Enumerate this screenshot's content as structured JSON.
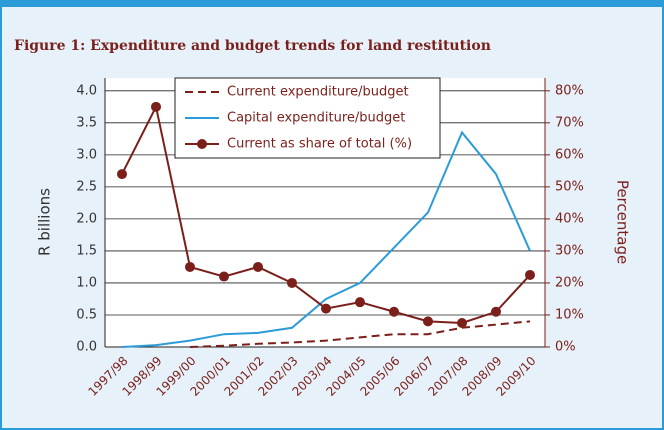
{
  "chart_data": {
    "type": "line",
    "title": "Figure 1: Expenditure and budget trends for land restitution",
    "y_label": "R billions",
    "y2_label": "Percentage",
    "categories": [
      "1997/98",
      "1998/99",
      "1999/00",
      "2000/01",
      "2001/02",
      "2002/03",
      "2003/04",
      "2004/05",
      "2005/06",
      "2006/07",
      "2007/08",
      "2008/09",
      "2009/10"
    ],
    "series": [
      {
        "name": "Current expenditure/budget",
        "color": "#7a1f1a",
        "dash": true,
        "values": [
          null,
          null,
          0,
          0.02,
          0.05,
          0.07,
          0.1,
          0.15,
          0.2,
          0.2,
          0.3,
          0.35,
          0.4
        ]
      },
      {
        "name": "Capital expenditure/budget",
        "color": "#2b9cd8",
        "values": [
          0,
          0.03,
          0.1,
          0.2,
          0.22,
          0.3,
          0.75,
          1.0,
          1.55,
          2.1,
          3.35,
          2.7,
          1.5
        ]
      },
      {
        "name": "Current as share of total (%)",
        "color": "#7a1f1a",
        "axis": "y2",
        "markers": true,
        "values": [
          54,
          75,
          25,
          22,
          25,
          20,
          12,
          14,
          11,
          8,
          7.5,
          11,
          22.5
        ]
      }
    ],
    "ylim": [
      0,
      4.2
    ],
    "yticks": [
      {
        "value": 0,
        "label": "0.0"
      },
      0.5,
      {
        "value": 1,
        "label": "1.0"
      },
      1.5,
      {
        "value": 2,
        "label": "2.0"
      },
      2.5,
      {
        "value": 3,
        "label": "3.0"
      },
      3.5,
      {
        "value": 4,
        "label": "4.0"
      }
    ],
    "y2lim": [
      0,
      84
    ],
    "y2ticks": [
      {
        "value": 0,
        "label": "0%"
      },
      {
        "value": 10,
        "label": "10%"
      },
      {
        "value": 20,
        "label": "20%"
      },
      {
        "value": 30,
        "label": "30%"
      },
      {
        "value": 40,
        "label": "40%"
      },
      {
        "value": 50,
        "label": "50%"
      },
      {
        "value": 60,
        "label": "60%"
      },
      {
        "value": 70,
        "label": "70%"
      },
      {
        "value": 80,
        "label": "80%"
      }
    ],
    "grid": true,
    "legend": "top"
  }
}
